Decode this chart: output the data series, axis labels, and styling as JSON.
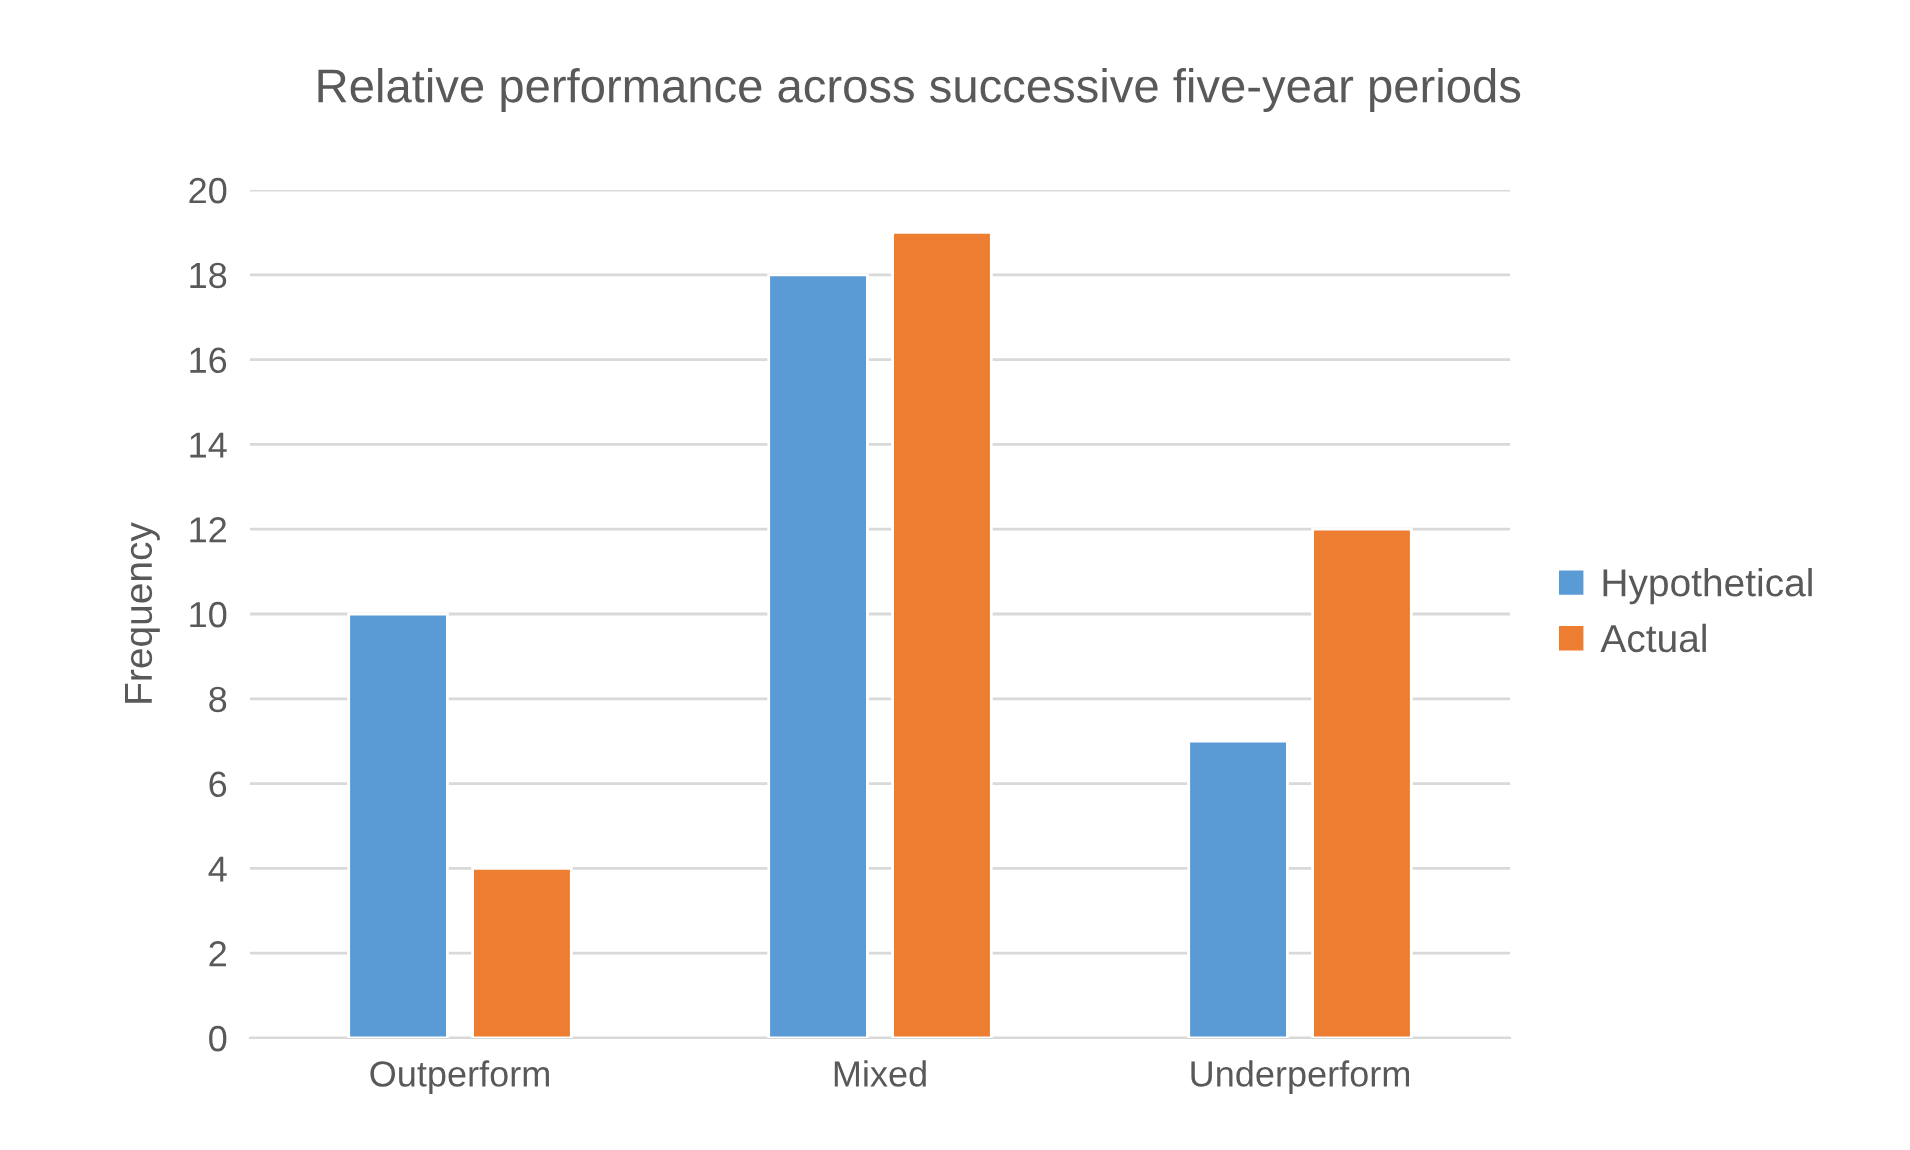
{
  "chart_data": {
    "type": "bar",
    "title": "Relative performance across successive five-year periods",
    "ylabel": "Frequency",
    "categories": [
      "Outperform",
      "Mixed",
      "Underperform"
    ],
    "series": [
      {
        "name": "Hypothetical",
        "color": "#5b9bd5",
        "values": [
          10,
          18,
          7
        ]
      },
      {
        "name": "Actual",
        "color": "#ed7d31",
        "values": [
          4,
          19,
          12
        ]
      }
    ],
    "ylim": [
      0,
      20
    ],
    "yticks": [
      0,
      2,
      4,
      6,
      8,
      10,
      12,
      14,
      16,
      18,
      20
    ],
    "grid": "y",
    "legend": "right"
  }
}
